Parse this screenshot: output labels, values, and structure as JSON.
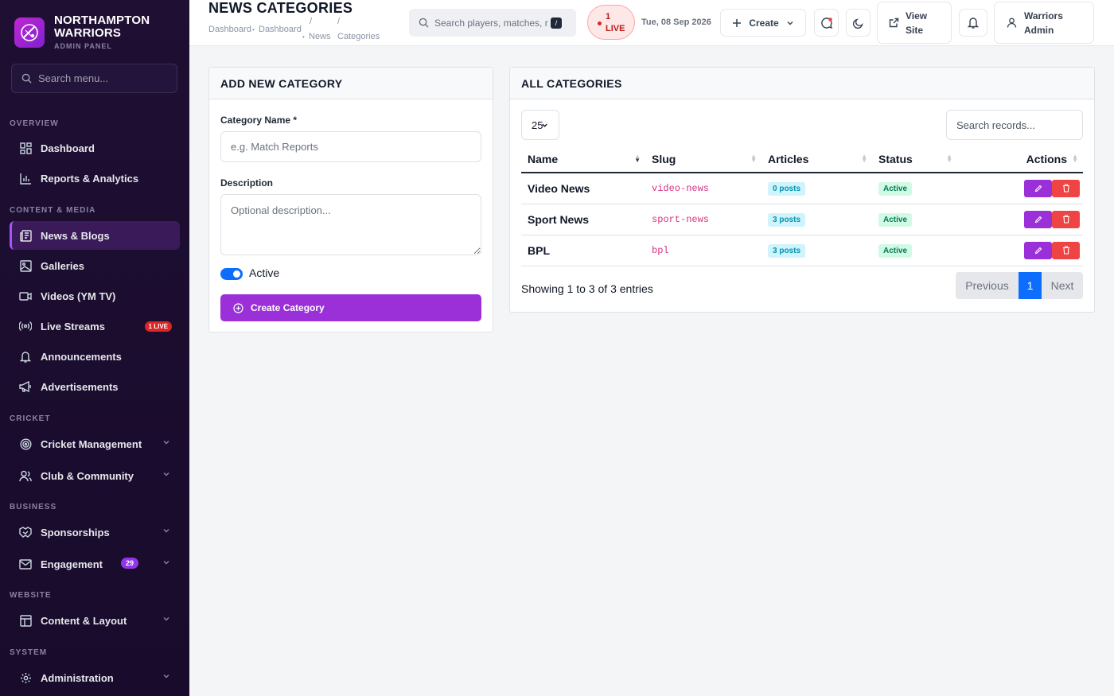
{
  "brand": {
    "name_line1": "NORTHAMPTON",
    "name_line2": "WARRIORS",
    "subtitle": "ADMIN PANEL"
  },
  "sidebar": {
    "search_placeholder": "Search menu...",
    "sections": {
      "overview": "OVERVIEW",
      "content": "CONTENT & MEDIA",
      "cricket": "CRICKET",
      "business": "BUSINESS",
      "website": "WEBSITE",
      "system": "SYSTEM"
    },
    "items": {
      "dashboard": "Dashboard",
      "reports": "Reports & Analytics",
      "news": "News & Blogs",
      "galleries": "Galleries",
      "videos": "Videos (YM TV)",
      "live_streams": "Live Streams",
      "live_streams_badge": "1 LIVE",
      "announcements": "Announcements",
      "advertisements": "Advertisements",
      "cricket_mgmt": "Cricket Management",
      "club": "Club & Community",
      "sponsorships": "Sponsorships",
      "engagement": "Engagement",
      "engagement_badge": "29",
      "content_layout": "Content & Layout",
      "administration": "Administration"
    },
    "active_item": "News & Blogs"
  },
  "header": {
    "title": "NEWS CATEGORIES",
    "breadcrumb": {
      "item1": "Dashboard",
      "item2": "Dashboard",
      "sep": "/",
      "item3": "News",
      "item4": "Categories"
    },
    "search_placeholder": "Search players, matches, r",
    "search_shortcut": "/",
    "live_count": "1",
    "live_label": "LIVE",
    "date": "Tue, 08 Sep 2026",
    "create_label": "Create",
    "view_site_line1": "View",
    "view_site_line2": "Site",
    "user_line1": "Warriors",
    "user_line2": "Admin"
  },
  "add_form": {
    "heading": "ADD NEW CATEGORY",
    "name_label": "Category Name *",
    "name_placeholder": "e.g. Match Reports",
    "desc_label": "Description",
    "desc_placeholder": "Optional description...",
    "active_label": "Active",
    "active": true,
    "submit_label": "Create Category"
  },
  "categories": {
    "heading": "ALL CATEGORIES",
    "page_length": "25",
    "search_placeholder": "Search records...",
    "columns": {
      "name": "Name",
      "slug": "Slug",
      "articles": "Articles",
      "status": "Status",
      "actions": "Actions"
    },
    "rows": [
      {
        "name": "Video News",
        "slug": "video-news",
        "articles": "0 posts",
        "status": "Active"
      },
      {
        "name": "Sport News",
        "slug": "sport-news",
        "articles": "3 posts",
        "status": "Active"
      },
      {
        "name": "BPL",
        "slug": "bpl",
        "articles": "3 posts",
        "status": "Active"
      }
    ],
    "info": "Showing 1 to 3 of 3 entries",
    "pagination": {
      "previous": "Previous",
      "current": "1",
      "next": "Next"
    }
  },
  "colors": {
    "accent": "#9b30d9",
    "primary": "#0d6efd",
    "danger": "#ef4444",
    "sidebar_bg": "#1f0f33"
  }
}
